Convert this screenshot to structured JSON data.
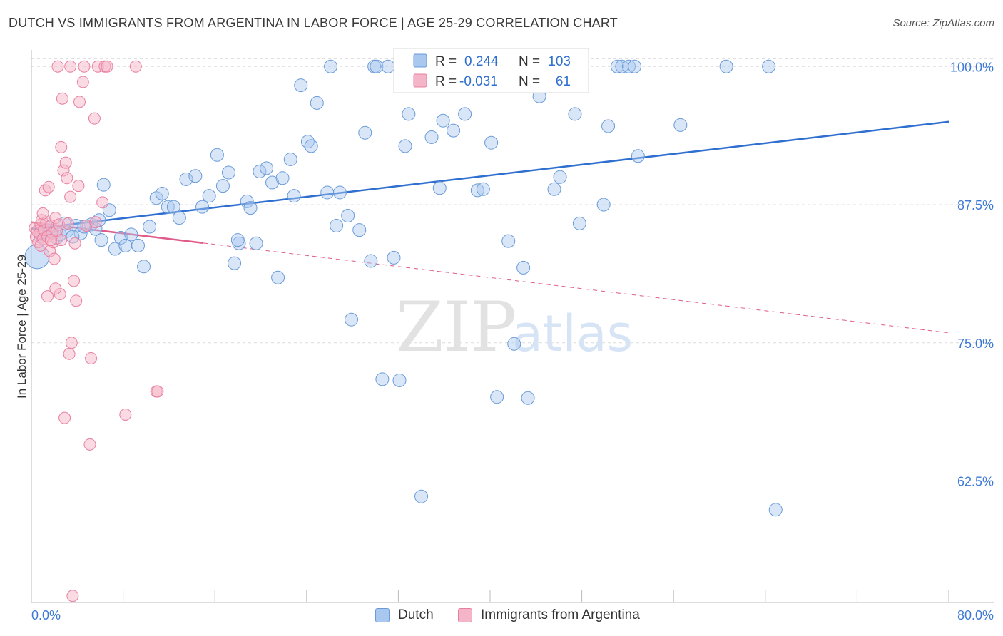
{
  "header": {
    "title": "DUTCH VS IMMIGRANTS FROM ARGENTINA IN LABOR FORCE | AGE 25-29 CORRELATION CHART",
    "source": "Source: ZipAtlas.com"
  },
  "watermark": {
    "zip": "ZIP",
    "atlas": "atlas"
  },
  "colors": {
    "dutch_fill": "#a8c8f0",
    "dutch_stroke": "#6a9bd8",
    "dutch_line": "#2f6fd0",
    "arg_fill": "#f5b5c8",
    "arg_stroke": "#e87fa0",
    "arg_line": "#e05a8a",
    "axis_label": "#3d7ad6",
    "grid": "#dcdcdc"
  },
  "stats_legend": {
    "rows": [
      {
        "r_label": "R =",
        "r_value": "0.244",
        "n_label": "N =",
        "n_value": "103"
      },
      {
        "r_label": "R =",
        "r_value": "-0.031",
        "n_label": "N =",
        "n_value": "61"
      }
    ]
  },
  "chart_data": {
    "type": "scatter",
    "title": "DUTCH VS IMMIGRANTS FROM ARGENTINA IN LABOR FORCE | AGE 25-29 CORRELATION CHART",
    "xlabel": "",
    "ylabel": "In Labor Force | Age 25-29",
    "xlim": [
      0,
      80
    ],
    "ylim": [
      51.5,
      101.5
    ],
    "x_tick_labels": [
      "0.0%",
      "80.0%"
    ],
    "y_ticks": [
      62.5,
      75.0,
      87.5,
      100.0
    ],
    "y_tick_labels": [
      "62.5%",
      "75.0%",
      "87.5%",
      "100.0%"
    ],
    "grid": true,
    "legend_position": "bottom-center",
    "series": [
      {
        "name": "Dutch",
        "R": 0.244,
        "N": 103,
        "trend": {
          "x": [
            0,
            80
          ],
          "y": [
            85.3,
            95.0
          ]
        },
        "points": [
          [
            0.5,
            82.8
          ],
          [
            0.8,
            84.6
          ],
          [
            1.5,
            85.4
          ],
          [
            2.2,
            84.5
          ],
          [
            2.5,
            84.8
          ],
          [
            3.1,
            85.1
          ],
          [
            3.9,
            85.6
          ],
          [
            4.3,
            84.9
          ],
          [
            5.2,
            85.7
          ],
          [
            5.6,
            85.3
          ],
          [
            5.9,
            86.1
          ],
          [
            6.3,
            89.3
          ],
          [
            6.8,
            87.0
          ],
          [
            7.3,
            83.5
          ],
          [
            7.8,
            84.5
          ],
          [
            8.2,
            83.8
          ],
          [
            8.7,
            84.8
          ],
          [
            9.3,
            83.8
          ],
          [
            9.8,
            81.9
          ],
          [
            10.3,
            85.5
          ],
          [
            10.9,
            88.1
          ],
          [
            11.4,
            88.5
          ],
          [
            11.9,
            87.3
          ],
          [
            12.4,
            87.3
          ],
          [
            12.9,
            86.3
          ],
          [
            13.5,
            89.8
          ],
          [
            14.3,
            90.1
          ],
          [
            14.9,
            87.3
          ],
          [
            15.5,
            88.3
          ],
          [
            16.2,
            92.0
          ],
          [
            16.7,
            89.2
          ],
          [
            17.2,
            90.4
          ],
          [
            17.7,
            82.2
          ],
          [
            18.1,
            84.0
          ],
          [
            18.0,
            84.3
          ],
          [
            18.8,
            87.8
          ],
          [
            19.1,
            87.2
          ],
          [
            19.6,
            84.0
          ],
          [
            19.9,
            90.5
          ],
          [
            20.5,
            90.8
          ],
          [
            21.0,
            89.5
          ],
          [
            21.5,
            80.9
          ],
          [
            21.9,
            89.9
          ],
          [
            22.6,
            91.6
          ],
          [
            22.9,
            88.3
          ],
          [
            23.5,
            98.3
          ],
          [
            24.1,
            93.2
          ],
          [
            24.4,
            92.8
          ],
          [
            24.9,
            96.7
          ],
          [
            25.8,
            88.6
          ],
          [
            26.1,
            100.0
          ],
          [
            26.6,
            85.6
          ],
          [
            26.9,
            88.6
          ],
          [
            27.6,
            86.5
          ],
          [
            27.9,
            77.1
          ],
          [
            28.6,
            85.2
          ],
          [
            29.1,
            94.0
          ],
          [
            29.6,
            82.4
          ],
          [
            29.9,
            100.0
          ],
          [
            30.1,
            100.0
          ],
          [
            30.6,
            71.7
          ],
          [
            31.1,
            100.0
          ],
          [
            31.6,
            82.7
          ],
          [
            32.1,
            71.6
          ],
          [
            32.6,
            92.8
          ],
          [
            32.9,
            95.7
          ],
          [
            33.8,
            100.0
          ],
          [
            34.0,
            61.1
          ],
          [
            34.9,
            93.6
          ],
          [
            35.6,
            89.0
          ],
          [
            35.9,
            95.1
          ],
          [
            36.8,
            94.2
          ],
          [
            37.8,
            95.7
          ],
          [
            38.9,
            88.8
          ],
          [
            39.4,
            88.9
          ],
          [
            40.1,
            93.1
          ],
          [
            40.6,
            70.1
          ],
          [
            41.6,
            84.2
          ],
          [
            42.1,
            74.9
          ],
          [
            42.9,
            81.8
          ],
          [
            43.3,
            70.0
          ],
          [
            44.3,
            97.3
          ],
          [
            45.6,
            88.9
          ],
          [
            46.1,
            90.0
          ],
          [
            47.4,
            95.7
          ],
          [
            47.8,
            85.8
          ],
          [
            49.9,
            87.5
          ],
          [
            50.3,
            94.6
          ],
          [
            51.1,
            100.0
          ],
          [
            51.5,
            100.0
          ],
          [
            52.1,
            100.0
          ],
          [
            52.6,
            100.0
          ],
          [
            52.9,
            91.9
          ],
          [
            56.6,
            94.7
          ],
          [
            60.6,
            100.0
          ],
          [
            64.3,
            100.0
          ],
          [
            64.9,
            59.9
          ],
          [
            3.6,
            84.6
          ],
          [
            1.8,
            85.1
          ],
          [
            2.9,
            85.8
          ],
          [
            4.6,
            85.5
          ],
          [
            6.1,
            84.3
          ],
          [
            1.1,
            85.0
          ]
        ]
      },
      {
        "name": "Immigrants from Argentina",
        "R": -0.031,
        "N": 61,
        "trend": {
          "x": [
            0,
            80
          ],
          "y": [
            85.9,
            75.9
          ]
        },
        "trend_solid_until_x": 15.0,
        "points": [
          [
            0.3,
            85.4
          ],
          [
            0.4,
            84.6
          ],
          [
            0.5,
            85.1
          ],
          [
            0.6,
            84.1
          ],
          [
            0.7,
            84.9
          ],
          [
            0.8,
            85.7
          ],
          [
            0.9,
            86.1
          ],
          [
            1.0,
            84.4
          ],
          [
            1.1,
            85.2
          ],
          [
            1.2,
            88.8
          ],
          [
            1.3,
            85.9
          ],
          [
            1.4,
            84.6
          ],
          [
            1.5,
            89.1
          ],
          [
            1.6,
            83.3
          ],
          [
            1.7,
            85.6
          ],
          [
            1.8,
            84.9
          ],
          [
            1.9,
            84.1
          ],
          [
            2.0,
            82.6
          ],
          [
            2.1,
            86.3
          ],
          [
            2.2,
            85.1
          ],
          [
            2.4,
            85.7
          ],
          [
            2.6,
            84.3
          ],
          [
            2.5,
            79.4
          ],
          [
            2.7,
            97.1
          ],
          [
            2.8,
            90.6
          ],
          [
            2.9,
            68.2
          ],
          [
            3.0,
            91.3
          ],
          [
            3.1,
            89.9
          ],
          [
            3.2,
            85.8
          ],
          [
            3.3,
            74.0
          ],
          [
            3.4,
            88.2
          ],
          [
            3.5,
            75.0
          ],
          [
            3.6,
            52.1
          ],
          [
            3.7,
            80.6
          ],
          [
            3.8,
            84.0
          ],
          [
            3.9,
            78.8
          ],
          [
            4.1,
            89.2
          ],
          [
            4.2,
            96.8
          ],
          [
            4.5,
            98.6
          ],
          [
            4.6,
            100.0
          ],
          [
            4.8,
            85.6
          ],
          [
            5.1,
            65.8
          ],
          [
            5.2,
            73.6
          ],
          [
            5.5,
            95.3
          ],
          [
            5.8,
            100.0
          ],
          [
            6.2,
            87.7
          ],
          [
            6.4,
            100.0
          ],
          [
            6.6,
            100.0
          ],
          [
            8.2,
            68.5
          ],
          [
            9.1,
            100.0
          ],
          [
            10.9,
            70.6
          ],
          [
            11.0,
            70.6
          ],
          [
            2.3,
            100.0
          ],
          [
            3.4,
            100.0
          ],
          [
            1.4,
            79.2
          ],
          [
            2.6,
            92.7
          ],
          [
            1.0,
            86.7
          ],
          [
            1.7,
            84.3
          ],
          [
            0.8,
            83.8
          ],
          [
            2.1,
            79.9
          ],
          [
            5.6,
            85.9
          ]
        ]
      }
    ]
  },
  "axis_labels": {
    "y_title": "In Labor Force | Age 25-29",
    "x_min_label": "0.0%",
    "x_max_label": "80.0%"
  },
  "bottom_legend": {
    "items": [
      {
        "label": "Dutch"
      },
      {
        "label": "Immigrants from Argentina"
      }
    ]
  }
}
